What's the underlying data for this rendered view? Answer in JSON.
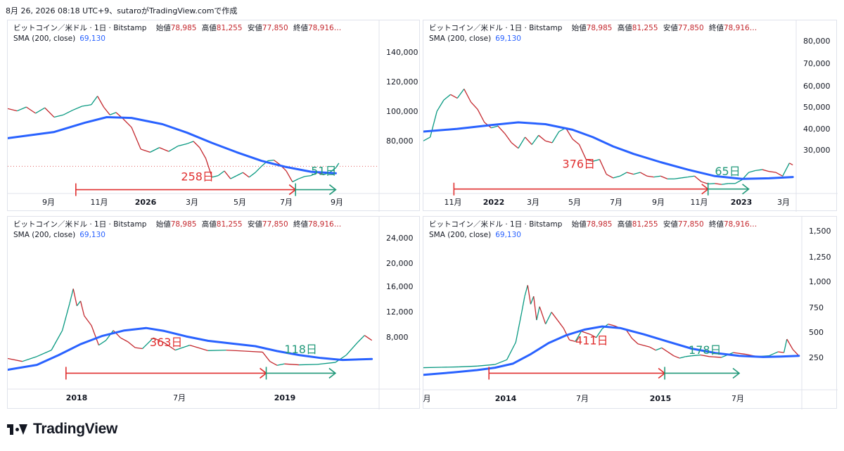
{
  "caption": "8月 26, 2026 08:18 UTC+9、sutaroがTradingView.comで作成",
  "brand": "TradingView",
  "legend": {
    "symbol": "ビットコイン／米ドル · 1日 · Bitstamp",
    "open_label": "始値",
    "open": "78,985",
    "high_label": "高値",
    "high": "81,255",
    "low_label": "安値",
    "low": "77,850",
    "close_label": "終値",
    "close": "78,916…",
    "sma_label": "SMA (200, close)",
    "sma_value": "69,130"
  },
  "colors": {
    "price_up": "#089981",
    "price_down": "#c4282e",
    "price_line": "#7a2e3a",
    "sma": "#2962ff",
    "red_arrow": "#e03030",
    "green_arrow": "#22997a"
  },
  "chart_data": [
    {
      "type": "line",
      "x_ticks": [
        "9月",
        "11月",
        "2026",
        "3月",
        "5月",
        "7月",
        "9月"
      ],
      "y_ticks": [
        "140,000",
        "120,000",
        "100,000",
        "80,000"
      ],
      "ylim": [
        62000,
        150000
      ],
      "price_points": [
        [
          0,
          116000
        ],
        [
          3,
          114500
        ],
        [
          6,
          117000
        ],
        [
          9,
          113000
        ],
        [
          12,
          116500
        ],
        [
          15,
          110500
        ],
        [
          18,
          112000
        ],
        [
          21,
          115000
        ],
        [
          24,
          117500
        ],
        [
          27,
          118500
        ],
        [
          29,
          124000
        ],
        [
          31,
          117000
        ],
        [
          33,
          112000
        ],
        [
          35,
          113500
        ],
        [
          37,
          110000
        ],
        [
          40,
          104000
        ],
        [
          43,
          90000
        ],
        [
          46,
          88000
        ],
        [
          49,
          91000
        ],
        [
          52,
          88500
        ],
        [
          55,
          92000
        ],
        [
          58,
          93500
        ],
        [
          60,
          95000
        ],
        [
          62,
          91000
        ],
        [
          64,
          84000
        ],
        [
          66,
          72000
        ],
        [
          68,
          73000
        ],
        [
          70,
          76000
        ],
        [
          72,
          71000
        ],
        [
          74,
          73000
        ],
        [
          76,
          75000
        ],
        [
          78,
          72000
        ],
        [
          80,
          75000
        ],
        [
          82,
          79000
        ],
        [
          84,
          82500
        ],
        [
          86,
          83000
        ],
        [
          88,
          80000
        ],
        [
          90,
          76000
        ],
        [
          92,
          69000
        ],
        [
          94,
          71000
        ],
        [
          96,
          72500
        ],
        [
          98,
          73000
        ],
        [
          100,
          75000
        ],
        [
          102,
          73500
        ],
        [
          104,
          75000
        ],
        [
          106,
          78000
        ],
        [
          107,
          81000
        ]
      ],
      "sma_points": [
        [
          0,
          97000
        ],
        [
          15,
          101000
        ],
        [
          25,
          107000
        ],
        [
          32,
          110500
        ],
        [
          40,
          110000
        ],
        [
          50,
          106000
        ],
        [
          58,
          100500
        ],
        [
          66,
          94000
        ],
        [
          74,
          88000
        ],
        [
          82,
          82500
        ],
        [
          90,
          78500
        ],
        [
          98,
          75500
        ],
        [
          106,
          74500
        ]
      ],
      "x_max": 120,
      "markers": [
        {
          "label": "258日",
          "label_value": 4,
          "label_x": 56,
          "label_y": 70000,
          "color": "red",
          "x_start": 22,
          "x_end": 93,
          "y": 64000
        },
        {
          "label": "51日",
          "label_value": 4,
          "label_x": 98,
          "label_y": 73500,
          "color": "green",
          "x_start": 93,
          "x_end": 106,
          "y": 64000
        }
      ]
    },
    {
      "type": "line",
      "x_ticks": [
        "11月",
        "2022",
        "3月",
        "5月",
        "7月",
        "9月",
        "11月",
        "2023",
        "3月"
      ],
      "y_ticks": [
        "80,000",
        "70,000",
        "60,000",
        "50,000",
        "40,000",
        "30,000"
      ],
      "ylim": [
        12000,
        86000
      ],
      "price_points": [
        [
          0,
          40000
        ],
        [
          2,
          42000
        ],
        [
          4,
          56000
        ],
        [
          6,
          62000
        ],
        [
          8,
          65000
        ],
        [
          10,
          63000
        ],
        [
          12,
          68000
        ],
        [
          14,
          61000
        ],
        [
          16,
          57000
        ],
        [
          18,
          50000
        ],
        [
          20,
          47000
        ],
        [
          22,
          48000
        ],
        [
          24,
          44000
        ],
        [
          26,
          39000
        ],
        [
          28,
          36000
        ],
        [
          30,
          42000
        ],
        [
          32,
          38000
        ],
        [
          34,
          43000
        ],
        [
          36,
          40000
        ],
        [
          38,
          39000
        ],
        [
          40,
          45000
        ],
        [
          42,
          47000
        ],
        [
          44,
          41000
        ],
        [
          46,
          38000
        ],
        [
          48,
          30000
        ],
        [
          50,
          29000
        ],
        [
          52,
          30000
        ],
        [
          54,
          22000
        ],
        [
          56,
          20000
        ],
        [
          58,
          21000
        ],
        [
          60,
          23000
        ],
        [
          62,
          22000
        ],
        [
          64,
          23000
        ],
        [
          66,
          21000
        ],
        [
          68,
          20500
        ],
        [
          70,
          21000
        ],
        [
          72,
          19500
        ],
        [
          74,
          19500
        ],
        [
          76,
          20000
        ],
        [
          78,
          20500
        ],
        [
          80,
          21000
        ],
        [
          82,
          18000
        ],
        [
          84,
          16800
        ],
        [
          86,
          17000
        ],
        [
          88,
          16500
        ],
        [
          90,
          17000
        ],
        [
          92,
          17000
        ],
        [
          94,
          19000
        ],
        [
          96,
          23000
        ],
        [
          98,
          24000
        ],
        [
          100,
          24500
        ],
        [
          102,
          23500
        ],
        [
          104,
          23000
        ],
        [
          106,
          21000
        ],
        [
          108,
          28000
        ],
        [
          109,
          27000
        ]
      ],
      "sma_points": [
        [
          0,
          45000
        ],
        [
          10,
          46500
        ],
        [
          20,
          48500
        ],
        [
          28,
          50000
        ],
        [
          36,
          49000
        ],
        [
          44,
          46000
        ],
        [
          50,
          42000
        ],
        [
          56,
          37000
        ],
        [
          62,
          33000
        ],
        [
          70,
          28500
        ],
        [
          78,
          24500
        ],
        [
          86,
          21000
        ],
        [
          94,
          19500
        ],
        [
          102,
          19800
        ],
        [
          109,
          20500
        ]
      ],
      "x_max": 110,
      "markers": [
        {
          "label": "376日",
          "label_value": 5,
          "label_x": 41,
          "label_y": 25500,
          "color": "red",
          "x_start": 9,
          "x_end": 84,
          "y": 14000
        },
        {
          "label": "65日",
          "label_value": 6,
          "label_x": 86,
          "label_y": 21500,
          "color": "green",
          "x_start": 84,
          "x_end": 96,
          "y": 14000
        }
      ]
    },
    {
      "type": "line",
      "x_ticks": [
        "2018",
        "7月",
        "2019"
      ],
      "y_ticks": [
        "24,000",
        "20,000",
        "16,000",
        "12,000",
        "8,000"
      ],
      "ylim": [
        0,
        26500
      ],
      "price_points": [
        [
          0,
          4800
        ],
        [
          4,
          4200
        ],
        [
          8,
          5200
        ],
        [
          12,
          6500
        ],
        [
          15,
          10500
        ],
        [
          17,
          16000
        ],
        [
          18,
          19000
        ],
        [
          19,
          15500
        ],
        [
          20,
          16500
        ],
        [
          21,
          13500
        ],
        [
          23,
          11500
        ],
        [
          25,
          7500
        ],
        [
          27,
          8500
        ],
        [
          29,
          10500
        ],
        [
          31,
          9000
        ],
        [
          33,
          8200
        ],
        [
          35,
          7000
        ],
        [
          37,
          6800
        ],
        [
          40,
          9000
        ],
        [
          43,
          8000
        ],
        [
          46,
          6500
        ],
        [
          50,
          7500
        ],
        [
          55,
          6400
        ],
        [
          60,
          6500
        ],
        [
          65,
          6300
        ],
        [
          70,
          6100
        ],
        [
          72,
          4200
        ],
        [
          74,
          3400
        ],
        [
          76,
          3700
        ],
        [
          80,
          3500
        ],
        [
          85,
          3600
        ],
        [
          90,
          4000
        ],
        [
          93,
          5500
        ],
        [
          96,
          8000
        ],
        [
          98,
          9500
        ],
        [
          100,
          8500
        ]
      ],
      "sma_points": [
        [
          0,
          2500
        ],
        [
          8,
          3500
        ],
        [
          14,
          5500
        ],
        [
          20,
          7700
        ],
        [
          26,
          9400
        ],
        [
          32,
          10500
        ],
        [
          38,
          11000
        ],
        [
          43,
          10400
        ],
        [
          49,
          9300
        ],
        [
          55,
          8400
        ],
        [
          62,
          7800
        ],
        [
          68,
          7300
        ],
        [
          74,
          6300
        ],
        [
          80,
          5500
        ],
        [
          86,
          4900
        ],
        [
          92,
          4500
        ],
        [
          100,
          4700
        ]
      ],
      "x_max": 102,
      "markers": [
        {
          "label": "363日",
          "label_value": 6,
          "label_x": 39,
          "label_y": 7300,
          "color": "red",
          "x_start": 16,
          "x_end": 71,
          "y": 1800
        },
        {
          "label": "118日",
          "label_value": 5,
          "label_x": 76,
          "label_y": 5900,
          "color": "green",
          "x_start": 71,
          "x_end": 90,
          "y": 1800
        }
      ]
    },
    {
      "type": "line",
      "x_ticks": [
        "月",
        "2014",
        "7月",
        "2015",
        "7月"
      ],
      "y_ticks": [
        "1,500",
        "1,250",
        "1,000",
        "750",
        "500",
        "250"
      ],
      "ylim": [
        -90,
        1560
      ],
      "price_points": [
        [
          0,
          100
        ],
        [
          6,
          105
        ],
        [
          12,
          110
        ],
        [
          18,
          120
        ],
        [
          24,
          140
        ],
        [
          28,
          200
        ],
        [
          31,
          420
        ],
        [
          33,
          800
        ],
        [
          34,
          1000
        ],
        [
          35,
          1140
        ],
        [
          36,
          900
        ],
        [
          37,
          1000
        ],
        [
          38,
          700
        ],
        [
          39,
          870
        ],
        [
          41,
          650
        ],
        [
          43,
          800
        ],
        [
          45,
          700
        ],
        [
          47,
          600
        ],
        [
          49,
          450
        ],
        [
          51,
          430
        ],
        [
          53,
          560
        ],
        [
          56,
          520
        ],
        [
          58,
          480
        ],
        [
          60,
          590
        ],
        [
          62,
          650
        ],
        [
          64,
          630
        ],
        [
          66,
          600
        ],
        [
          68,
          580
        ],
        [
          70,
          470
        ],
        [
          72,
          400
        ],
        [
          74,
          380
        ],
        [
          76,
          360
        ],
        [
          78,
          320
        ],
        [
          80,
          350
        ],
        [
          82,
          300
        ],
        [
          84,
          250
        ],
        [
          86,
          220
        ],
        [
          88,
          240
        ],
        [
          90,
          250
        ],
        [
          93,
          260
        ],
        [
          96,
          240
        ],
        [
          100,
          230
        ],
        [
          104,
          290
        ],
        [
          108,
          270
        ],
        [
          112,
          240
        ],
        [
          116,
          250
        ],
        [
          119,
          300
        ],
        [
          121,
          290
        ],
        [
          122,
          460
        ],
        [
          124,
          330
        ],
        [
          126,
          250
        ]
      ],
      "sma_points": [
        [
          0,
          10
        ],
        [
          10,
          40
        ],
        [
          18,
          70
        ],
        [
          24,
          100
        ],
        [
          30,
          150
        ],
        [
          36,
          270
        ],
        [
          42,
          410
        ],
        [
          48,
          510
        ],
        [
          54,
          580
        ],
        [
          60,
          620
        ],
        [
          66,
          600
        ],
        [
          74,
          520
        ],
        [
          82,
          430
        ],
        [
          90,
          340
        ],
        [
          98,
          285
        ],
        [
          106,
          250
        ],
        [
          114,
          235
        ],
        [
          120,
          240
        ],
        [
          126,
          250
        ]
      ],
      "x_max": 127,
      "markers": [
        {
          "label": "411日",
          "label_value": 5,
          "label_x": 51,
          "label_y": 395,
          "color": "red",
          "x_start": 22,
          "x_end": 81,
          "y": 30
        },
        {
          "label": "178日",
          "label_value": 6,
          "label_x": 89,
          "label_y": 275,
          "color": "green",
          "x_start": 81,
          "x_end": 106,
          "y": 30
        }
      ]
    }
  ]
}
